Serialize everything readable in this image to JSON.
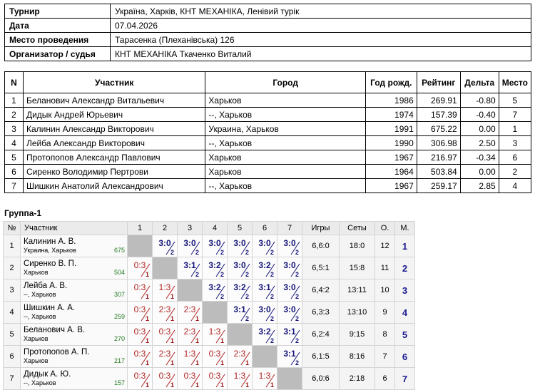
{
  "info": [
    {
      "label": "Турнир",
      "value": "Україна, Харків, КНТ МЕХАНІКА, Ленівий турік"
    },
    {
      "label": "Дата",
      "value": "07.04.2026"
    },
    {
      "label": "Место проведения",
      "value": "Тарасенка (Плеханівська) 126"
    },
    {
      "label": "Организатор / судья",
      "value": "КНТ МЕХАНІКА Ткаченко Виталий"
    }
  ],
  "participants": {
    "headers": [
      "N",
      "Участник",
      "Город",
      "Год рожд.",
      "Рейтинг",
      "Дельта",
      "Место"
    ],
    "rows": [
      [
        "1",
        "Беланович Александр Витальевич",
        "Харьков",
        "1986",
        "269.91",
        "-0.80",
        "5"
      ],
      [
        "2",
        "Дидык Андрей Юрьевич",
        "--, Харьков",
        "1974",
        "157.39",
        "-0.40",
        "7"
      ],
      [
        "3",
        "Калинин Александр Викторович",
        "Украина, Харьков",
        "1991",
        "675.22",
        "0.00",
        "1"
      ],
      [
        "4",
        "Лейба Александр Викторович",
        "--, Харьков",
        "1990",
        "306.98",
        "2.50",
        "3"
      ],
      [
        "5",
        "Протопопов Александр Павлович",
        "Харьков",
        "1967",
        "216.97",
        "-0.34",
        "6"
      ],
      [
        "6",
        "Сиренко Володимир Пертрови",
        "Харьков",
        "1964",
        "503.84",
        "0.00",
        "2"
      ],
      [
        "7",
        "Шишкин Анатолий Александрович",
        "--, Харьков",
        "1967",
        "259.17",
        "2.85",
        "4"
      ]
    ]
  },
  "group": {
    "title": "Группа-1",
    "headers": [
      "№",
      "Участник",
      "1",
      "2",
      "3",
      "4",
      "5",
      "6",
      "7",
      "Игры",
      "Сеты",
      "О.",
      "М."
    ],
    "rows": [
      {
        "n": "1",
        "name": "Калинин А. В.",
        "city": "Украина, Харьков",
        "rating": "675",
        "cells": [
          null,
          [
            "3:0",
            "2"
          ],
          [
            "3:0",
            "2"
          ],
          [
            "3:0",
            "2"
          ],
          [
            "3:0",
            "2"
          ],
          [
            "3:0",
            "2"
          ],
          [
            "3:0",
            "2"
          ]
        ],
        "games": "6,6:0",
        "sets": "18:0",
        "points": "12",
        "place": "1"
      },
      {
        "n": "2",
        "name": "Сиренко В. П.",
        "city": "Харьков",
        "rating": "504",
        "cells": [
          [
            "0:3",
            "1"
          ],
          null,
          [
            "3:1",
            "2"
          ],
          [
            "3:2",
            "2"
          ],
          [
            "3:0",
            "2"
          ],
          [
            "3:2",
            "2"
          ],
          [
            "3:0",
            "2"
          ]
        ],
        "games": "6,5:1",
        "sets": "15:8",
        "points": "11",
        "place": "2"
      },
      {
        "n": "3",
        "name": "Лейба А. В.",
        "city": "--, Харьков",
        "rating": "307",
        "cells": [
          [
            "0:3",
            "1"
          ],
          [
            "1:3",
            "1"
          ],
          null,
          [
            "3:2",
            "2"
          ],
          [
            "3:2",
            "2"
          ],
          [
            "3:1",
            "2"
          ],
          [
            "3:0",
            "2"
          ]
        ],
        "games": "6,4:2",
        "sets": "13:11",
        "points": "10",
        "place": "3"
      },
      {
        "n": "4",
        "name": "Шишкин А. А.",
        "city": "--, Харьков",
        "rating": "259",
        "cells": [
          [
            "0:3",
            "1"
          ],
          [
            "2:3",
            "1"
          ],
          [
            "2:3",
            "1"
          ],
          null,
          [
            "3:1",
            "2"
          ],
          [
            "3:0",
            "2"
          ],
          [
            "3:0",
            "2"
          ]
        ],
        "games": "6,3:3",
        "sets": "13:10",
        "points": "9",
        "place": "4"
      },
      {
        "n": "5",
        "name": "Беланович А. В.",
        "city": "Харьков",
        "rating": "270",
        "cells": [
          [
            "0:3",
            "1"
          ],
          [
            "0:3",
            "1"
          ],
          [
            "2:3",
            "1"
          ],
          [
            "1:3",
            "1"
          ],
          null,
          [
            "3:2",
            "2"
          ],
          [
            "3:1",
            "2"
          ]
        ],
        "games": "6,2:4",
        "sets": "9:15",
        "points": "8",
        "place": "5"
      },
      {
        "n": "6",
        "name": "Протопопов А. П.",
        "city": "Харьков",
        "rating": "217",
        "cells": [
          [
            "0:3",
            "1"
          ],
          [
            "2:3",
            "1"
          ],
          [
            "1:3",
            "1"
          ],
          [
            "0:3",
            "1"
          ],
          [
            "2:3",
            "1"
          ],
          null,
          [
            "3:1",
            "2"
          ]
        ],
        "games": "6,1:5",
        "sets": "8:16",
        "points": "7",
        "place": "6"
      },
      {
        "n": "7",
        "name": "Дидык А. Ю.",
        "city": "--, Харьков",
        "rating": "157",
        "cells": [
          [
            "0:3",
            "1"
          ],
          [
            "0:3",
            "1"
          ],
          [
            "0:3",
            "1"
          ],
          [
            "0:3",
            "1"
          ],
          [
            "1:3",
            "1"
          ],
          [
            "1:3",
            "1"
          ],
          null
        ],
        "games": "6,0:6",
        "sets": "2:18",
        "points": "6",
        "place": "7"
      }
    ]
  },
  "colors": {
    "win": "#14147a",
    "loss": "#b02020",
    "diagonal": "#bcbcbc",
    "rating": "#1f7a1f",
    "header_bg": "#ebebeb"
  }
}
